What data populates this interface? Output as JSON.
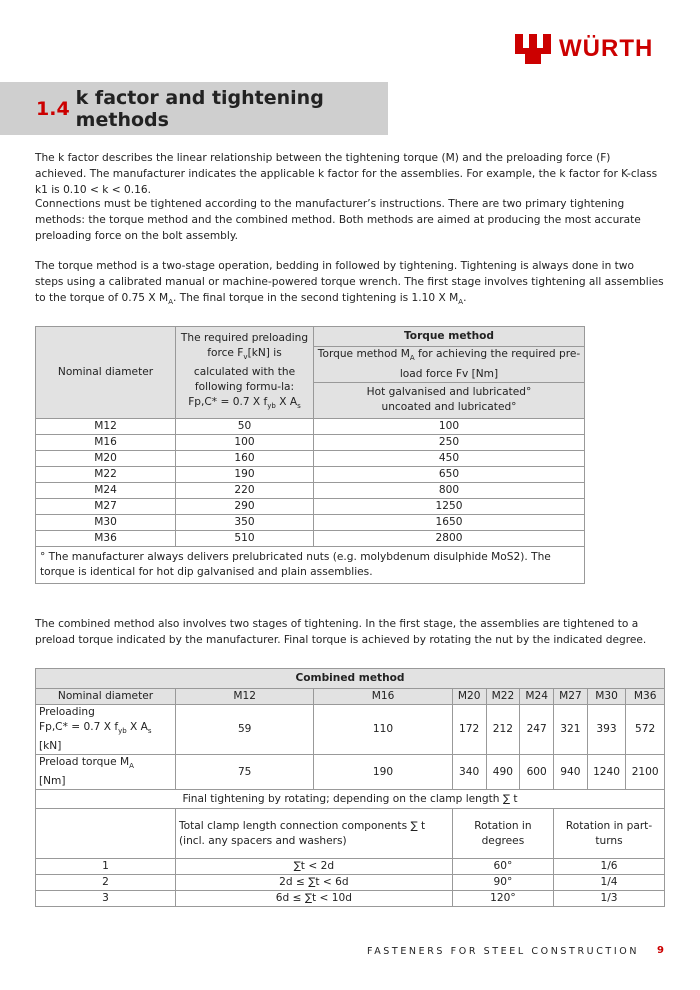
{
  "brand": {
    "name": "WÜRTH",
    "color": "#cc0000"
  },
  "heading": {
    "number": "1.4",
    "title": "k factor and tightening methods"
  },
  "paragraphs": [
    "The k factor describes the linear relationship between the tightening torque (M) and the preloading force (F) achieved.   The manufacturer indicates the applicable k factor for the assemblies. For example, the k factor for K-class k1 is 0.10 < k < 0.16.",
    "Connections must be tightened according to the manufacturer’s instructions. There are two primary tightening methods: the torque method and the combined method. Both methods are aimed at producing the most accurate preloading force on the bolt assembly.",
    "The torque method is a two-stage operation, bedding in followed by tightening. Tightening is always done in two steps using a calibrated manual or machine-powered torque wrench. The first stage involves tightening all assemblies to the torque of 0.75 X M",
    ". The final torque in the second tightening is 1.10 X M",
    "The combined method also involves two stages of tightening. In the first stage, the assemblies are tightened to a preload torque indicated by the manufacturer. Final torque is achieved by rotating the nut by the indicated degree."
  ],
  "torque_table": {
    "col1": "Nominal diameter",
    "col2_a": "The required preloading force F",
    "col2_sub": "v",
    "col2_b": "[kN] is calculated with the following formu-la:",
    "col2_formula": "Fp,C* = 0.7 X f",
    "col2_formula_sub": "yb",
    "col2_formula_b": " X A",
    "col2_formula_sub2": "s",
    "group": "Torque method",
    "sub_a": "Torque method M",
    "sub_sub": "A",
    "sub_b": " for achieving the required pre-load force Fv [Nm]",
    "cond1": "Hot galvanised and lubricated°",
    "cond2": "uncoated and lubricated°",
    "rows": [
      [
        "M12",
        "50",
        "100"
      ],
      [
        "M16",
        "100",
        "250"
      ],
      [
        "M20",
        "160",
        "450"
      ],
      [
        "M22",
        "190",
        "650"
      ],
      [
        "M24",
        "220",
        "800"
      ],
      [
        "M27",
        "290",
        "1250"
      ],
      [
        "M30",
        "350",
        "1650"
      ],
      [
        "M36",
        "510",
        "2800"
      ]
    ],
    "note": "° The manufacturer always delivers prelubricated nuts (e.g. molybdenum disulphide MoS2). The torque is identical for hot dip galvanised and plain assemblies."
  },
  "combined_table": {
    "title": "Combined method",
    "nominal_label": "Nominal diameter",
    "diameters": [
      "M12",
      "M16",
      "M20",
      "M22",
      "M24",
      "M27",
      "M30",
      "M36"
    ],
    "preload_label_a": "Preloading",
    "preload_label_b": "Fp,C* = 0.7 X f",
    "preload_sub": "yb",
    "preload_label_c": " X A",
    "preload_sub2": "s",
    "preload_label_d": "[kN]",
    "preload": [
      "59",
      "110",
      "172",
      "212",
      "247",
      "321",
      "393",
      "572"
    ],
    "torque_label_a": "Preload torque M",
    "torque_sub": "A",
    "torque_label_b": "[Nm]",
    "torque": [
      "75",
      "190",
      "340",
      "490",
      "600",
      "940",
      "1240",
      "2100"
    ],
    "final_label": "Final tightening by rotating; depending on the clamp length ∑ t",
    "clamp_header": "Total clamp length connection components ∑ t (incl. any spacers and washers)",
    "deg_header": "Rotation in degrees",
    "turn_header": "Rotation in part-turns",
    "rotations": [
      [
        "1",
        "∑t  < 2d",
        "60°",
        "1/6"
      ],
      [
        "2",
        "2d ≤ ∑t < 6d",
        "90°",
        "1/4"
      ],
      [
        "3",
        "6d ≤ ∑t < 10d",
        "120°",
        "1/3"
      ]
    ]
  },
  "footer": {
    "text": "FASTENERS FOR STEEL CONSTRUCTION",
    "page": "9"
  }
}
